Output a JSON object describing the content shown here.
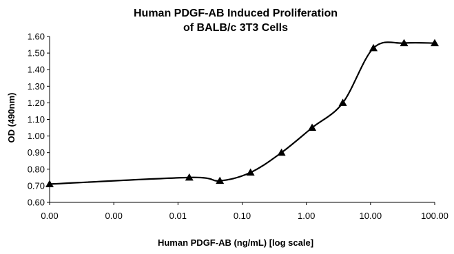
{
  "chart_data": {
    "type": "line",
    "title_lines": [
      "Human PDGF-AB Induced Proliferation",
      "of BALB/c 3T3 Cells"
    ],
    "xlabel": "Human PDGF-AB (ng/mL) [log scale]",
    "ylabel": "OD (490nm)",
    "x_scale": "log",
    "xlim": [
      0.0001,
      100
    ],
    "x_tick_labels": [
      "0.00",
      "0.00",
      "0.01",
      "0.10",
      "1.00",
      "10.00",
      "100.00"
    ],
    "ylim": [
      0.6,
      1.6
    ],
    "y_tick_labels": [
      "0.60",
      "0.70",
      "0.80",
      "0.90",
      "1.00",
      "1.10",
      "1.20",
      "1.30",
      "1.40",
      "1.50",
      "1.60"
    ],
    "grid": false,
    "legend": "none",
    "line_color": "#000000",
    "marker": "triangle",
    "series": [
      {
        "x": [
          0.0001,
          0.015,
          0.045,
          0.135,
          0.41,
          1.23,
          3.7,
          11.1,
          33.3,
          100
        ],
        "y": [
          0.71,
          0.75,
          0.73,
          0.78,
          0.9,
          1.05,
          1.2,
          1.53,
          1.56,
          1.56
        ]
      }
    ]
  }
}
